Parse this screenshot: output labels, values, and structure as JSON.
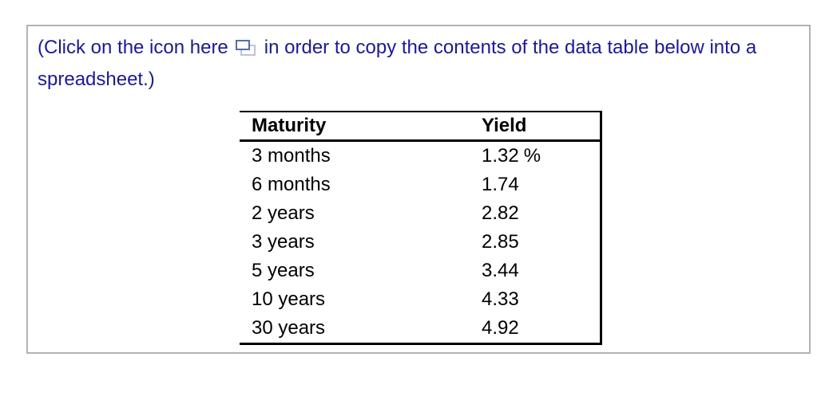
{
  "instruction": {
    "text_before_icon": "(Click on the icon here",
    "text_after_icon": "in order to copy the contents of the data table below into a spreadsheet.)",
    "icon": "copy-to-spreadsheet-icon"
  },
  "table": {
    "headers": {
      "maturity": "Maturity",
      "yield": "Yield"
    },
    "rows": [
      {
        "maturity": "3 months",
        "yield": "1.32",
        "unit": "%"
      },
      {
        "maturity": "6 months",
        "yield": "1.74",
        "unit": ""
      },
      {
        "maturity": "2 years",
        "yield": "2.82",
        "unit": ""
      },
      {
        "maturity": "3 years",
        "yield": "2.85",
        "unit": ""
      },
      {
        "maturity": "5 years",
        "yield": "3.44",
        "unit": ""
      },
      {
        "maturity": "10 years",
        "yield": "4.33",
        "unit": ""
      },
      {
        "maturity": "30 years",
        "yield": "4.92",
        "unit": ""
      }
    ]
  },
  "colors": {
    "instruction_text": "#1a1a96",
    "table_border": "#000000",
    "table_text": "#000000",
    "panel_border": "#b3b3b3",
    "icon_front_border": "#5a6cb1",
    "icon_back_border": "#bfc3d9",
    "background": "#ffffff"
  }
}
